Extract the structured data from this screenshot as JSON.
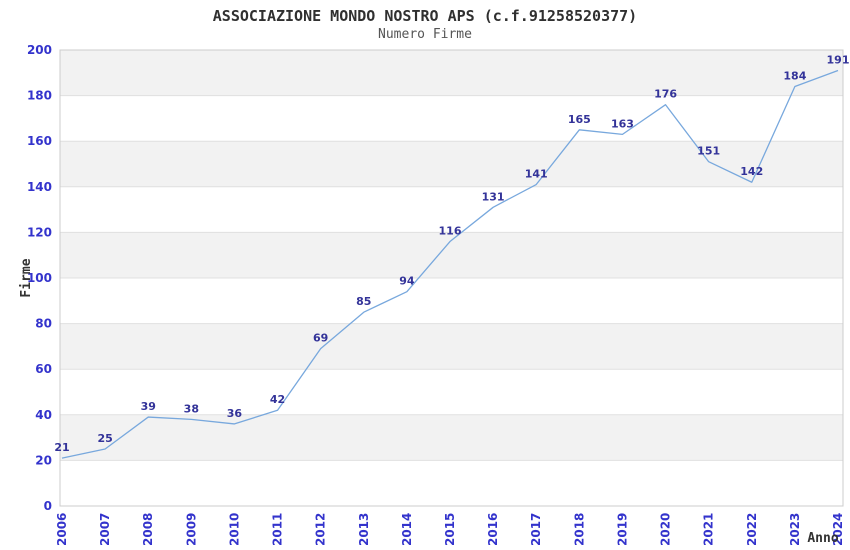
{
  "chart_data": {
    "type": "line",
    "title": "ASSOCIAZIONE MONDO NOSTRO APS (c.f.91258520377)",
    "subtitle": "Numero Firme",
    "xlabel": "Anno",
    "ylabel": "Firme",
    "categories": [
      "2006",
      "2007",
      "2008",
      "2009",
      "2010",
      "2011",
      "2012",
      "2013",
      "2014",
      "2015",
      "2016",
      "2017",
      "2018",
      "2019",
      "2020",
      "2021",
      "2022",
      "2023",
      "2024"
    ],
    "series": [
      {
        "name": "Numero Firme",
        "values": [
          21,
          25,
          39,
          38,
          36,
          42,
          69,
          85,
          94,
          116,
          131,
          141,
          165,
          163,
          176,
          151,
          142,
          184,
          191
        ]
      }
    ],
    "ylim": [
      0,
      200
    ],
    "ytick_step": 20,
    "grid": "horizontal-bands-alternating",
    "legend": "none",
    "data_labels_visible": true,
    "colors": {
      "line": "#78a8dd",
      "data_label": "#333399",
      "tick_label": "#3333cc",
      "band_fill": "#f2f2f2",
      "grid_line": "#e0e0e0",
      "plot_border": "#cccccc",
      "title": "#303030",
      "subtitle": "#555555",
      "axis_title": "#333333",
      "background": "#ffffff"
    }
  }
}
